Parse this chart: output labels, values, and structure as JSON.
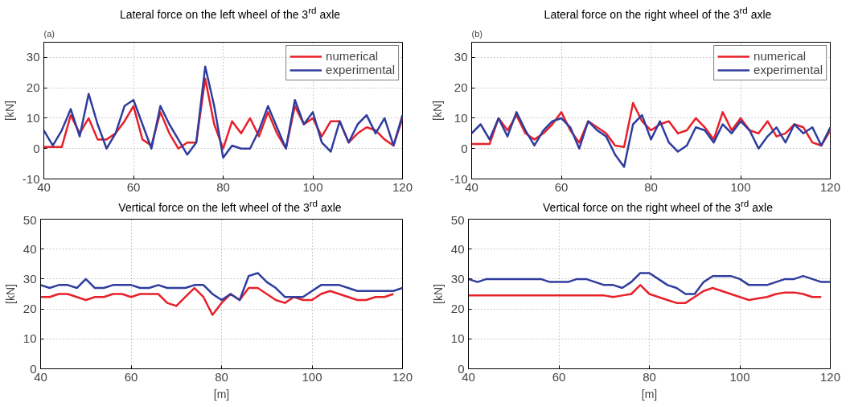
{
  "chart_data": [
    {
      "type": "line",
      "title": "Lateral force on the left wheel of the 3$^{rd}$ axle",
      "ylabel": "[kN]",
      "annotations": [
        "(a)"
      ],
      "x": [
        40,
        42,
        44,
        46,
        48,
        50,
        52,
        54,
        56,
        58,
        60,
        62,
        64,
        66,
        68,
        70,
        72,
        74,
        76,
        78,
        80,
        82,
        84,
        86,
        88,
        90,
        92,
        94,
        96,
        98,
        100,
        102,
        104,
        106,
        108,
        110,
        112,
        114,
        116,
        118,
        120
      ],
      "xlim": [
        40,
        120
      ],
      "xticks": [
        40,
        60,
        80,
        100,
        120
      ],
      "ylim": [
        -10,
        35
      ],
      "yticks": [
        -10,
        0,
        10,
        20,
        30
      ],
      "grid": true,
      "legend": "top right",
      "series": [
        {
          "name": "numerical",
          "color": "#e8202a",
          "values": [
            0.5,
            0.5,
            0.5,
            11,
            5,
            10,
            3,
            3,
            5,
            9,
            14,
            3,
            1,
            12,
            5,
            0,
            2,
            2,
            23,
            8,
            0,
            9,
            5,
            10,
            4,
            12,
            5,
            0,
            14,
            8,
            10,
            4,
            9,
            9,
            2,
            5,
            7,
            6,
            3,
            1,
            10
          ]
        },
        {
          "name": "experimental",
          "color": "#2e3d9e",
          "values": [
            6,
            1,
            6,
            13,
            4,
            18,
            8,
            0,
            5,
            14,
            16,
            8,
            0,
            14,
            8,
            3,
            -2,
            2,
            27,
            14,
            -3,
            1,
            0,
            0,
            6,
            14,
            7,
            0,
            16,
            8,
            12,
            2,
            -1,
            9,
            2,
            8,
            11,
            5,
            10,
            1,
            11
          ]
        }
      ]
    },
    {
      "type": "line",
      "title": "Lateral force on the right wheel of the 3$^{rd}$ axle",
      "ylabel": "[kN]",
      "annotations": [
        "(b)"
      ],
      "x": [
        40,
        42,
        44,
        46,
        48,
        50,
        52,
        54,
        56,
        58,
        60,
        62,
        64,
        66,
        68,
        70,
        72,
        74,
        76,
        78,
        80,
        82,
        84,
        86,
        88,
        90,
        92,
        94,
        96,
        98,
        100,
        102,
        104,
        106,
        108,
        110,
        112,
        114,
        116,
        118,
        120
      ],
      "xlim": [
        40,
        120
      ],
      "xticks": [
        40,
        60,
        80,
        100,
        120
      ],
      "ylim": [
        -10,
        35
      ],
      "yticks": [
        -10,
        0,
        10,
        20,
        30
      ],
      "grid": true,
      "legend": "top right",
      "series": [
        {
          "name": "numerical",
          "color": "#e8202a",
          "values": [
            1.5,
            1.5,
            1.5,
            10,
            6,
            11,
            5,
            3,
            5,
            8,
            12,
            6,
            2,
            9,
            7,
            5,
            1,
            0.5,
            15,
            9,
            6,
            8,
            9,
            5,
            6,
            10,
            7,
            3,
            12,
            6,
            10,
            6,
            5,
            9,
            4,
            5,
            8,
            7,
            2,
            1,
            6
          ]
        },
        {
          "name": "experimental",
          "color": "#2e3d9e",
          "values": [
            5,
            8,
            3,
            10,
            4,
            12,
            6,
            1,
            6,
            9,
            10,
            7,
            0,
            9,
            6,
            4,
            -2,
            -6,
            8,
            11,
            3,
            9,
            2,
            -1,
            1,
            7,
            6,
            2,
            8,
            5,
            9,
            6,
            0,
            4,
            7,
            2,
            8,
            5,
            7,
            1,
            7
          ]
        }
      ]
    },
    {
      "type": "line",
      "title": "Vertical force on the left wheel of the 3$^{rd}$ axle",
      "xlabel": "[m]",
      "ylabel": "[kN]",
      "x": [
        40,
        42,
        44,
        46,
        48,
        50,
        52,
        54,
        56,
        58,
        60,
        62,
        64,
        66,
        68,
        70,
        72,
        74,
        76,
        78,
        80,
        82,
        84,
        86,
        88,
        90,
        92,
        94,
        96,
        98,
        100,
        102,
        104,
        106,
        108,
        110,
        112,
        114,
        116,
        118,
        120
      ],
      "xlim": [
        40,
        120
      ],
      "xticks": [
        40,
        60,
        80,
        100,
        120
      ],
      "ylim": [
        0,
        50
      ],
      "yticks": [
        0,
        10,
        20,
        30,
        40,
        50
      ],
      "grid": true,
      "series": [
        {
          "color": "#e8202a",
          "values": [
            24,
            24,
            25,
            25,
            24,
            23,
            24,
            24,
            25,
            25,
            24,
            25,
            25,
            25,
            22,
            21,
            24,
            27,
            24,
            18,
            22,
            25,
            23,
            27,
            27,
            25,
            23,
            22,
            24,
            23,
            23,
            25,
            26,
            25,
            24,
            23,
            23,
            24,
            24,
            25,
            null
          ]
        },
        {
          "color": "#2e3d9e",
          "values": [
            28,
            27,
            28,
            28,
            27,
            30,
            27,
            27,
            28,
            28,
            28,
            27,
            27,
            28,
            27,
            27,
            27,
            28,
            28,
            25,
            23,
            25,
            23,
            31,
            32,
            29,
            27,
            24,
            24,
            24,
            26,
            28,
            28,
            28,
            27,
            26,
            26,
            26,
            26,
            26,
            27
          ]
        }
      ]
    },
    {
      "type": "line",
      "title": "Vertical force on the right wheel of the 3$^{rd}$ axle",
      "xlabel": "[m]",
      "ylabel": "[kN]",
      "x": [
        40,
        42,
        44,
        46,
        48,
        50,
        52,
        54,
        56,
        58,
        60,
        62,
        64,
        66,
        68,
        70,
        72,
        74,
        76,
        78,
        80,
        82,
        84,
        86,
        88,
        90,
        92,
        94,
        96,
        98,
        100,
        102,
        104,
        106,
        108,
        110,
        112,
        114,
        116,
        118,
        120
      ],
      "xlim": [
        40,
        120
      ],
      "xticks": [
        40,
        60,
        80,
        100,
        120
      ],
      "ylim": [
        0,
        50
      ],
      "yticks": [
        0,
        10,
        20,
        30,
        40,
        50
      ],
      "grid": true,
      "series": [
        {
          "color": "#e8202a",
          "values": [
            24.5,
            24.5,
            24.5,
            24.5,
            24.5,
            24.5,
            24.5,
            24.5,
            24.5,
            24.5,
            24.5,
            24.5,
            24.5,
            24.5,
            24.5,
            24.5,
            24,
            24.5,
            25,
            28,
            25,
            24,
            23,
            22,
            22,
            24,
            26,
            27,
            26,
            25,
            24,
            23,
            23.5,
            24,
            25,
            25.5,
            25.5,
            25,
            24,
            24,
            null
          ]
        },
        {
          "color": "#2e3d9e",
          "values": [
            30,
            29,
            30,
            30,
            30,
            30,
            30,
            30,
            30,
            29,
            29,
            29,
            30,
            30,
            29,
            28,
            28,
            27,
            29,
            32,
            32,
            30,
            28,
            27,
            25,
            25,
            29,
            31,
            31,
            31,
            30,
            28,
            28,
            28,
            29,
            30,
            30,
            31,
            30,
            29,
            29
          ]
        }
      ]
    }
  ]
}
